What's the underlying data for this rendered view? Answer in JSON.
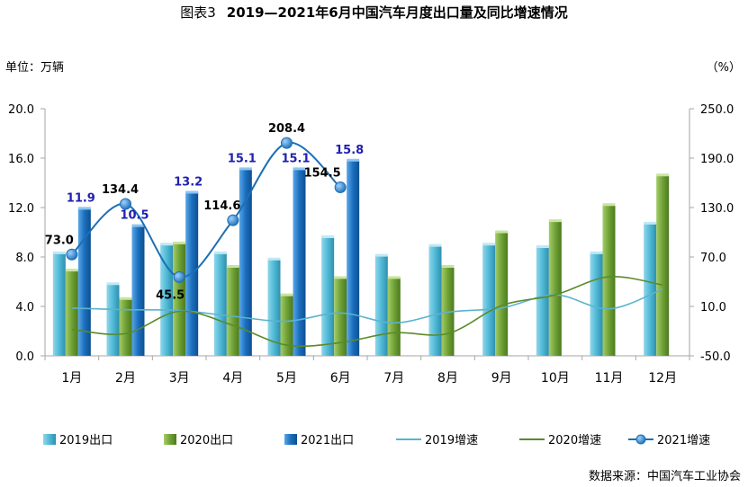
{
  "title": {
    "prefix": "图表3",
    "main": "2019—2021年6月中国汽车月度出口量及同比增速情况"
  },
  "unit_left": "单位：万辆",
  "unit_right": "（%）",
  "source": "数据来源：中国汽车工业协会",
  "colors": {
    "bar2019": "#4fb9d6",
    "bar2020": "#70a236",
    "bar2021": "#1a6fbf",
    "line2019": "#5bb3cf",
    "line2020": "#5b8a2a",
    "line2021": "#1c6fb5",
    "label2021bar": "#1f1fb0",
    "axis": "#a6a6a6"
  },
  "chart_data": {
    "type": "bar",
    "categories": [
      "1月",
      "2月",
      "3月",
      "4月",
      "5月",
      "6月",
      "7月",
      "8月",
      "9月",
      "10月",
      "11月",
      "12月"
    ],
    "ylim_left": [
      0,
      20
    ],
    "yticks_left": [
      "0.0",
      "4.0",
      "8.0",
      "12.0",
      "16.0",
      "20.0"
    ],
    "ylim_right": [
      -50,
      250
    ],
    "yticks_right": [
      "-50.0",
      "10.0",
      "70.0",
      "130.0",
      "190.0",
      "250.0"
    ],
    "grid": false,
    "legend_position": "bottom",
    "bar_series": [
      {
        "name": "2019出口",
        "values": [
          8.3,
          5.8,
          9.0,
          8.3,
          7.8,
          9.6,
          8.1,
          8.9,
          9.0,
          8.8,
          8.3,
          10.7
        ]
      },
      {
        "name": "2020出口",
        "values": [
          6.9,
          4.6,
          9.1,
          7.2,
          4.9,
          6.3,
          6.3,
          7.2,
          10.0,
          10.9,
          12.2,
          14.6
        ]
      },
      {
        "name": "2021出口",
        "values": [
          11.9,
          10.5,
          13.2,
          15.1,
          15.1,
          15.8
        ],
        "labels": [
          "11.9",
          "10.5",
          "13.2",
          "15.1",
          "15.1",
          "15.8"
        ]
      }
    ],
    "line_series": [
      {
        "name": "2019增速",
        "values": [
          8,
          6,
          5,
          -2,
          -8,
          2,
          -10,
          3,
          8,
          24,
          7,
          31
        ]
      },
      {
        "name": "2020增速",
        "values": [
          -18,
          -23,
          4,
          -13,
          -37,
          -34,
          -22,
          -23,
          11,
          24,
          46,
          36
        ]
      },
      {
        "name": "2021增速",
        "values": [
          73.0,
          134.4,
          45.5,
          114.6,
          208.4,
          154.5
        ],
        "labels": [
          "73.0",
          "134.4",
          "45.5",
          "114.6",
          "208.4",
          "154.5"
        ]
      }
    ]
  }
}
